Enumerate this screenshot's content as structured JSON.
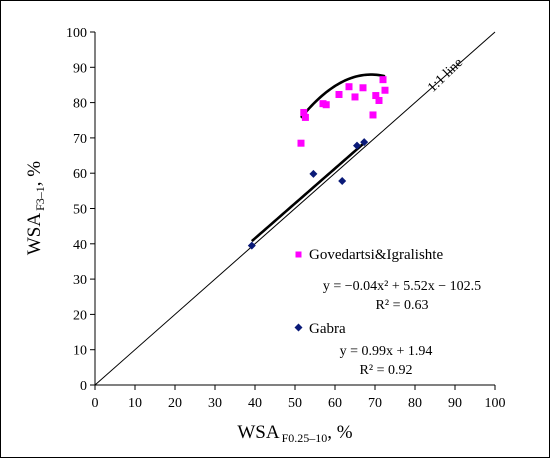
{
  "chart_data": {
    "type": "scatter",
    "title": "",
    "xlabel": {
      "main": "WSA",
      "sub": "F0.25–10",
      "suffix": ", %"
    },
    "ylabel": {
      "main": "WSA",
      "sub": "F3–1",
      "suffix": ", %"
    },
    "xlim": [
      0,
      100
    ],
    "ylim": [
      0,
      100
    ],
    "x_ticks": [
      "0",
      "10",
      "20",
      "30",
      "40",
      "50",
      "60",
      "70",
      "80",
      "90",
      "100"
    ],
    "y_ticks": [
      "0",
      "10",
      "20",
      "30",
      "40",
      "50",
      "60",
      "70",
      "80",
      "90",
      "100"
    ],
    "grid": false,
    "reference_line": {
      "label": "1:1 line",
      "slope": 1,
      "intercept": 0
    },
    "series": [
      {
        "name": "Govedartsi&Igralishte",
        "color": "#ff00ff",
        "marker": "square",
        "points": [
          [
            51.5,
            68.5
          ],
          [
            52.2,
            77.2
          ],
          [
            52.6,
            75.8
          ],
          [
            57.0,
            79.7
          ],
          [
            57.8,
            79.4
          ],
          [
            61.0,
            82.3
          ],
          [
            63.5,
            84.5
          ],
          [
            65.0,
            81.6
          ],
          [
            67.0,
            84.2
          ],
          [
            69.5,
            76.5
          ],
          [
            70.2,
            82.0
          ],
          [
            71.0,
            80.6
          ],
          [
            72.0,
            86.5
          ],
          [
            72.5,
            83.5
          ]
        ],
        "fit": {
          "type": "polynomial",
          "equation": "y = −0.04x² + 5.52x − 102.5",
          "r2": "R² = 0.63",
          "coefficients": [
            -0.04,
            5.52,
            -102.5
          ],
          "x_range": [
            51.5,
            72.5
          ]
        }
      },
      {
        "name": "Gabra",
        "color": "#0a1a78",
        "marker": "diamond",
        "points": [
          [
            39.2,
            39.5
          ],
          [
            54.6,
            59.8
          ],
          [
            61.8,
            57.8
          ],
          [
            65.5,
            67.8
          ],
          [
            67.3,
            68.8
          ]
        ],
        "fit": {
          "type": "linear",
          "equation": "y = 0.99x + 1.94",
          "r2": "R² = 0.92",
          "coefficients": [
            0.99,
            1.94
          ],
          "x_range": [
            39.2,
            67.3
          ]
        }
      }
    ],
    "legend_position": "right-middle"
  }
}
